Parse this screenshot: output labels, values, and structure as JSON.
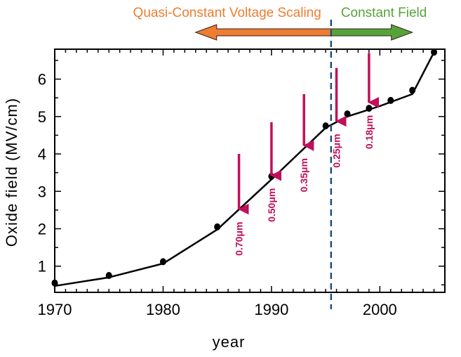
{
  "chart_data": {
    "type": "line",
    "xlabel": "year",
    "ylabel": "Oxide field (MV/cm)",
    "xlim": [
      1970,
      2006
    ],
    "ylim": [
      0.3,
      6.8
    ],
    "x_ticks": [
      1970,
      1980,
      1990,
      2000
    ],
    "y_ticks": [
      1,
      2,
      3,
      4,
      5,
      6
    ],
    "grid": false,
    "points": [
      {
        "x": 1970,
        "y": 0.55
      },
      {
        "x": 1975,
        "y": 0.75
      },
      {
        "x": 1980,
        "y": 1.12
      },
      {
        "x": 1985,
        "y": 2.05
      },
      {
        "x": 1990,
        "y": 3.4
      },
      {
        "x": 1995,
        "y": 4.75
      },
      {
        "x": 1997,
        "y": 5.07
      },
      {
        "x": 1999,
        "y": 5.22
      },
      {
        "x": 2001,
        "y": 5.43
      },
      {
        "x": 2003,
        "y": 5.7
      },
      {
        "x": 2005,
        "y": 6.72
      }
    ],
    "trend": [
      {
        "x": 1970,
        "y": 0.47
      },
      {
        "x": 1975,
        "y": 0.7
      },
      {
        "x": 1980,
        "y": 1.07
      },
      {
        "x": 1985,
        "y": 1.98
      },
      {
        "x": 1990,
        "y": 3.32
      },
      {
        "x": 1995,
        "y": 4.7
      },
      {
        "x": 1997,
        "y": 5.0
      },
      {
        "x": 2000,
        "y": 5.28
      },
      {
        "x": 2003,
        "y": 5.6
      },
      {
        "x": 2005,
        "y": 6.72
      }
    ],
    "technology_nodes": [
      {
        "label": "0.70μm",
        "x": 1987,
        "y_start": 4.0,
        "y_end": 2.45
      },
      {
        "label": "0.50μm",
        "x": 1990,
        "y_start": 4.85,
        "y_end": 3.35
      },
      {
        "label": "0.35μm",
        "x": 1993,
        "y_start": 5.6,
        "y_end": 4.15
      },
      {
        "label": "0.25μm",
        "x": 1996,
        "y_start": 6.3,
        "y_end": 4.8
      },
      {
        "label": "0.18μm",
        "x": 1999,
        "y_start": 6.7,
        "y_end": 5.3
      }
    ],
    "divider_x": 1995.5,
    "regions": [
      {
        "label": "Quasi-Constant Voltage Scaling",
        "x_from": 1995.5,
        "x_to": 1983,
        "color": "#ED7D31"
      },
      {
        "label": "Constant Field",
        "x_from": 1995.5,
        "x_to": 2003,
        "color": "#56A33A"
      }
    ],
    "colors": {
      "line": "#000000",
      "marker": "#000000",
      "node_arrow": "#C0105A",
      "divider": "#1F4E79",
      "arrow_outline": "#3A1F1F"
    }
  }
}
